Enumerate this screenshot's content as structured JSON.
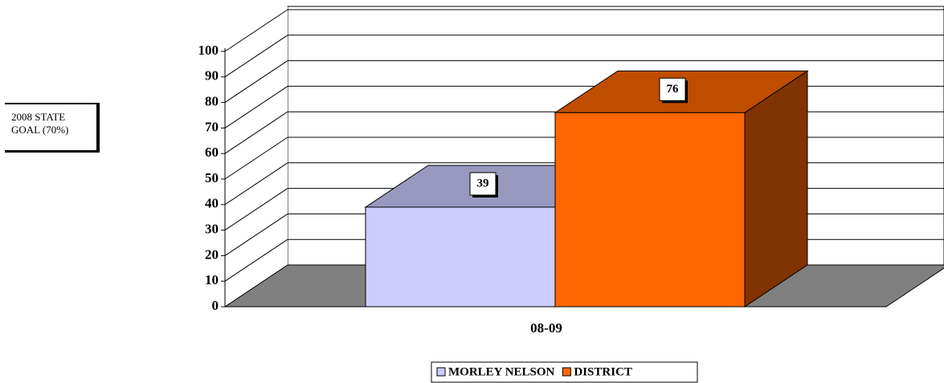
{
  "chart_data": {
    "type": "bar3d",
    "annotation": "2008 STATE GOAL (70%)",
    "categories": [
      "08-09"
    ],
    "series": [
      {
        "name": "MORLEY NELSON",
        "color": "#ccccff",
        "values": [
          39
        ]
      },
      {
        "name": "DISTRICT",
        "color": "#ff6600",
        "values": [
          76
        ]
      }
    ],
    "ylim": [
      0,
      100
    ],
    "yticks": [
      0,
      10,
      20,
      30,
      40,
      50,
      60,
      70,
      80,
      90,
      100
    ],
    "grid": true
  }
}
